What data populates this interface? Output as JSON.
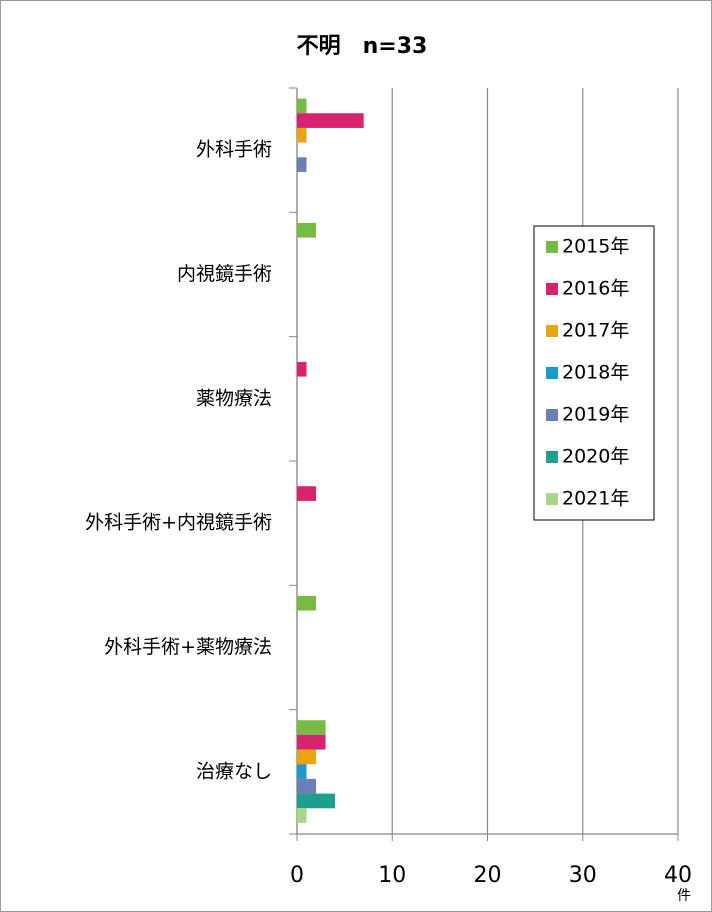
{
  "chart_data": {
    "type": "bar",
    "orientation": "horizontal",
    "title": "不明　n=33",
    "x_label": "件",
    "categories": [
      "外科手術",
      "内視鏡手術",
      "薬物療法",
      "外科手術+内視鏡手術",
      "外科手術+薬物療法",
      "治療なし"
    ],
    "series": [
      {
        "name": "2015年",
        "color": "#77bb44",
        "values": [
          1,
          2,
          0,
          0,
          2,
          3
        ]
      },
      {
        "name": "2016年",
        "color": "#d6246e",
        "values": [
          7,
          0,
          1,
          2,
          0,
          3
        ]
      },
      {
        "name": "2017年",
        "color": "#e8a317",
        "values": [
          1,
          0,
          0,
          0,
          0,
          2
        ]
      },
      {
        "name": "2018年",
        "color": "#1a9bc8",
        "values": [
          0,
          0,
          0,
          0,
          0,
          1
        ]
      },
      {
        "name": "2019年",
        "color": "#6a7fb5",
        "values": [
          1,
          0,
          0,
          0,
          0,
          2
        ]
      },
      {
        "name": "2020年",
        "color": "#1e9e8c",
        "values": [
          0,
          0,
          0,
          0,
          0,
          4
        ]
      },
      {
        "name": "2021年",
        "color": "#a8d88a",
        "values": [
          0,
          0,
          0,
          0,
          0,
          1
        ]
      }
    ],
    "xlim": [
      0,
      40
    ],
    "xticks": [
      0,
      10,
      20,
      30,
      40
    ],
    "grid": true,
    "legend": "right"
  }
}
